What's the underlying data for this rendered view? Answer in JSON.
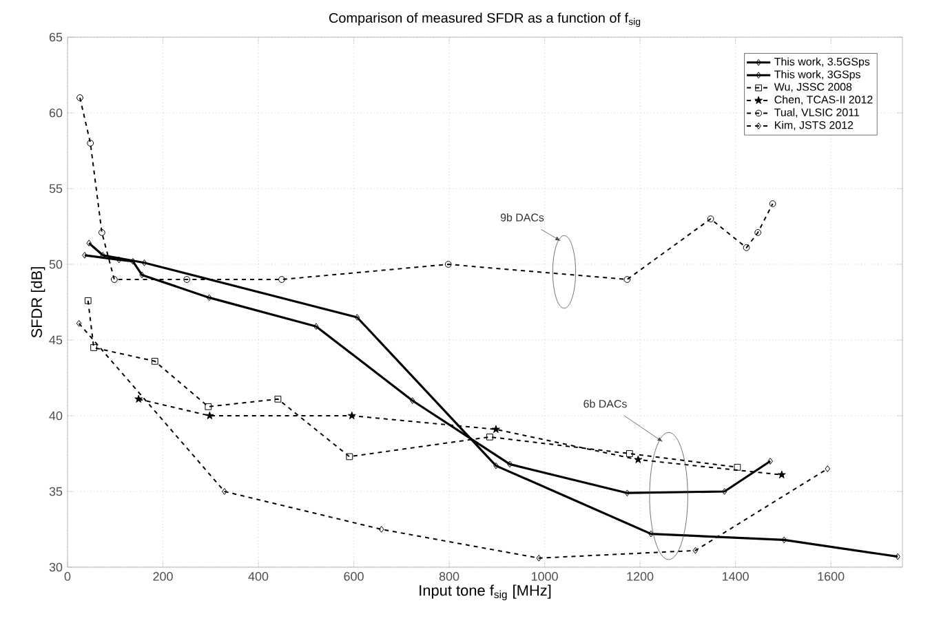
{
  "chart_data": {
    "type": "line",
    "title": "Comparison of measured SFDR as a function of f$_{sig}$",
    "xlabel": "Input tone f$_{sig}$ [MHz]",
    "ylabel": "SFDR [dB]",
    "xlim": [
      0,
      1750
    ],
    "ylim": [
      30,
      65
    ],
    "xticks": [
      0,
      200,
      400,
      600,
      800,
      1000,
      1200,
      1400,
      1600
    ],
    "yticks": [
      30,
      35,
      40,
      45,
      50,
      55,
      60,
      65
    ],
    "grid": true,
    "legend": "top right",
    "series": [
      {
        "name": "This work, 3.5GSps",
        "color": "#000000",
        "marker": "diamond",
        "line_style": "solid",
        "x": [
          45,
          74,
          161,
          607,
          898,
          1223,
          1502,
          1740
        ],
        "values": [
          51.4,
          50.6,
          50.1,
          46.5,
          36.7,
          32.2,
          31.8,
          30.7
        ]
      },
      {
        "name": "This work, 3GSps",
        "color": "#000000",
        "marker": "diamond",
        "line_style": "solid",
        "x": [
          36,
          108,
          137,
          156,
          297,
          521,
          723,
          927,
          1173,
          1377,
          1473
        ],
        "values": [
          50.6,
          50.3,
          50.2,
          49.3,
          47.8,
          45.9,
          41.0,
          36.8,
          34.9,
          35.0,
          37.0
        ]
      },
      {
        "name": "Wu, JSSC 2008",
        "color": "#000000",
        "marker": "square",
        "line_style": "dashed",
        "x": [
          43,
          55,
          183,
          295,
          441,
          591,
          885,
          1178,
          1404
        ],
        "values": [
          47.6,
          44.5,
          43.6,
          40.6,
          41.1,
          37.3,
          38.6,
          37.5,
          36.6
        ]
      },
      {
        "name": "Chen, TCAS-II 2012",
        "color": "#000000",
        "marker": "star",
        "line_style": "dashed",
        "x": [
          149,
          298,
          596,
          898,
          1196,
          1497
        ],
        "values": [
          41.1,
          40.0,
          40.0,
          39.1,
          37.1,
          36.1
        ]
      },
      {
        "name": "Tual, VLSIC 2011",
        "color": "#000000",
        "marker": "circle",
        "line_style": "dashed",
        "x": [
          26,
          48,
          72,
          98,
          250,
          449,
          798,
          1173,
          1348,
          1423,
          1447,
          1478
        ],
        "values": [
          61.0,
          58.0,
          52.1,
          49.0,
          49.0,
          49.0,
          50.0,
          49.0,
          53.0,
          51.1,
          52.1,
          54.0
        ]
      },
      {
        "name": "Kim, JSTS 2012",
        "color": "#000000",
        "marker": "diamond",
        "line_style": "dashed",
        "x": [
          24,
          329,
          658,
          988,
          1316,
          1593
        ],
        "values": [
          46.1,
          35.0,
          32.5,
          30.6,
          31.1,
          36.5
        ]
      }
    ],
    "annotations": [
      "9b DACs",
      "6b DACs"
    ]
  }
}
